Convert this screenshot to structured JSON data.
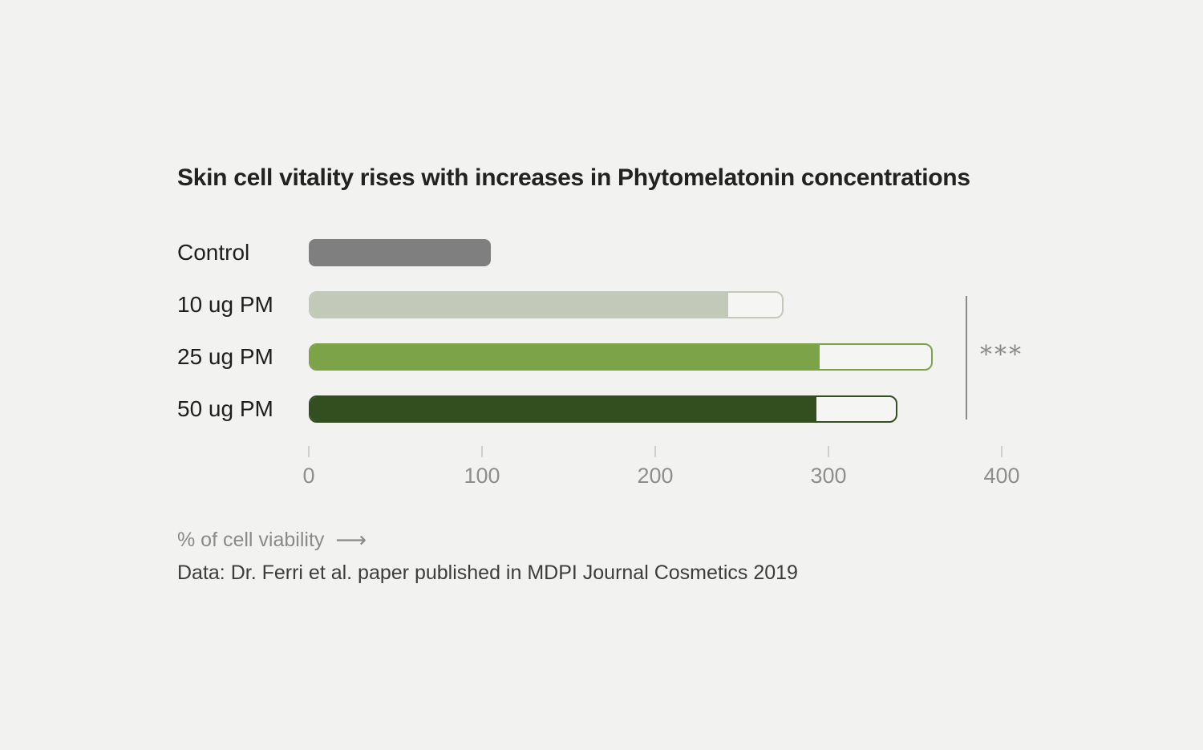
{
  "title": "Skin cell vitality rises with increases in Phytomelatonin concentrations",
  "caption": {
    "xlabel": "% of cell viability",
    "arrow": "⟶"
  },
  "source": "Data: Dr. Ferri et al. paper published in MDPI Journal Cosmetics 2019",
  "significance": {
    "label": "***",
    "applies_to": [
      "10 ug PM",
      "25 ug PM",
      "50 ug PM"
    ]
  },
  "colors": {
    "background": "#f2f2f1",
    "title_text": "#222222",
    "category_text": "#1e1e1e",
    "axis_text": "#8e8e8e",
    "tick_mark": "#cfcfcd",
    "significance": "#8a8a8a",
    "caption_text": "#8a8a8a",
    "source_text": "#3c3c3c",
    "empty_track": "#f5f5f4",
    "control_bar": "#7f7f7f",
    "bar_10ug": "#c2c9b8",
    "bar_25ug": "#7ca348",
    "bar_50ug": "#344f1f"
  },
  "chart_data": {
    "type": "bar",
    "orientation": "horizontal",
    "title": "Skin cell vitality rises with increases in Phytomelatonin concentrations",
    "xlabel": "% of cell viability",
    "ylabel": "",
    "categories": [
      "Control",
      "10 ug PM",
      "25 ug PM",
      "50 ug PM"
    ],
    "series": [
      {
        "name": "filled value (% of cell viability)",
        "values": [
          105,
          242,
          295,
          293
        ]
      },
      {
        "name": "outlined extent (% of cell viability)",
        "values": [
          105,
          274,
          360,
          340
        ]
      }
    ],
    "bar_colors": [
      "#7f7f7f",
      "#c2c9b8",
      "#7ca348",
      "#344f1f"
    ],
    "outlined": [
      false,
      true,
      true,
      true
    ],
    "x_ticks": [
      0,
      100,
      200,
      300,
      400
    ],
    "x_tick_labels": [
      "0",
      "100",
      "200",
      "300",
      "400"
    ],
    "xlim": [
      0,
      400
    ],
    "grid": false,
    "legend": false,
    "annotations": [
      {
        "text": "***",
        "type": "significance-bracket",
        "rows": [
          "10 ug PM",
          "25 ug PM",
          "50 ug PM"
        ]
      }
    ]
  }
}
